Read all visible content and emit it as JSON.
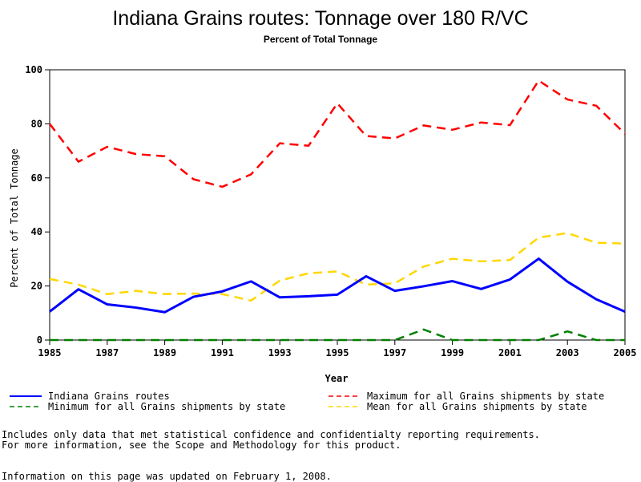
{
  "chart_data": {
    "type": "line",
    "title": "Indiana Grains routes: Tonnage over 180 R/VC",
    "subtitle": "Percent of Total Tonnage",
    "xlabel": "Year",
    "ylabel": "Percent of Total Tonnage",
    "xlim": [
      1985,
      2005
    ],
    "ylim": [
      0,
      100
    ],
    "x_ticks": [
      1985,
      1987,
      1989,
      1991,
      1993,
      1995,
      1997,
      1999,
      2001,
      2003,
      2005
    ],
    "y_ticks": [
      0,
      20,
      40,
      60,
      80,
      100
    ],
    "grid": false,
    "legend_position": "bottom",
    "x": [
      1985,
      1986,
      1987,
      1988,
      1989,
      1990,
      1991,
      1992,
      1993,
      1994,
      1995,
      1996,
      1997,
      1998,
      1999,
      2000,
      2001,
      2002,
      2003,
      2004,
      2005
    ],
    "series": [
      {
        "name": "Indiana Grains routes",
        "color": "#0000ff",
        "style": "solid",
        "values": [
          10.5,
          18.8,
          13.2,
          12.0,
          10.3,
          16.0,
          18.0,
          21.7,
          15.8,
          16.2,
          16.8,
          23.6,
          18.2,
          19.9,
          21.8,
          18.9,
          22.4,
          30.1,
          21.6,
          15.1,
          10.5
        ]
      },
      {
        "name": "Maximum for all Grains shipments by state",
        "color": "#ff0000",
        "style": "dashed",
        "values": [
          80.0,
          66.0,
          71.5,
          68.8,
          68.0,
          59.5,
          56.7,
          61.3,
          72.8,
          71.9,
          87.6,
          75.5,
          74.6,
          79.4,
          77.8,
          80.5,
          79.5,
          96.0,
          89.0,
          86.7,
          76.3
        ]
      },
      {
        "name": "Minimum for all Grains shipments by state",
        "color": "#008000",
        "style": "dashed",
        "values": [
          0,
          0,
          0,
          0,
          0,
          0,
          0,
          0,
          0,
          0,
          0,
          0,
          0,
          3.9,
          0,
          0,
          0,
          0,
          3.2,
          0,
          0
        ]
      },
      {
        "name": "Mean for all Grains shipments by state",
        "color": "#ffd700",
        "style": "dashed",
        "values": [
          22.6,
          20.5,
          17.0,
          18.2,
          17.0,
          17.2,
          17.0,
          14.6,
          22.0,
          24.7,
          25.4,
          20.5,
          21.0,
          27.2,
          30.1,
          29.1,
          29.6,
          37.9,
          39.6,
          36.0,
          35.7
        ]
      }
    ]
  },
  "footnote_line1": "Includes only data that met statistical confidence and confidentialty reporting requirements.",
  "footnote_line2": "For more information, see the Scope and Methodology for this product.",
  "updated_note": "Information on this page was updated on February 1, 2008."
}
